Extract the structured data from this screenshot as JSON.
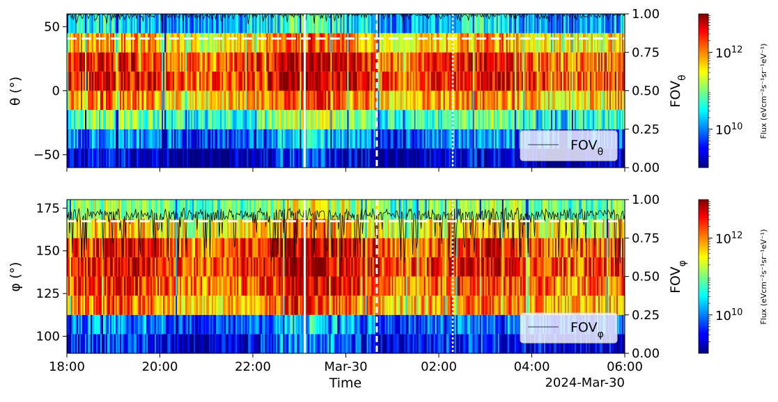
{
  "chart_data": [
    {
      "type": "heatmap",
      "panel": "theta",
      "ylabel": "θ (°)",
      "y2label": "FOV_θ",
      "ylim": [
        -60,
        60
      ],
      "yticks": [
        -50,
        0,
        50
      ],
      "y2lim": [
        0,
        1
      ],
      "y2ticks": [
        "0.00",
        "0.25",
        "0.50",
        "0.75",
        "1.00"
      ],
      "bins_deg": [
        -60,
        -45,
        -30,
        -15,
        0,
        15,
        30,
        45,
        60
      ],
      "bin_level_log10_flux": [
        9.2,
        9.9,
        10.8,
        11.8,
        12.4,
        12.3,
        11.7,
        10.3
      ],
      "fov_threshold_line": 0.84,
      "fov_trace_level": 0.99,
      "vertical_markers": [
        {
          "time": "23:07",
          "style": "solid",
          "color": "white"
        },
        {
          "time": "00:40",
          "style": "dashed",
          "color": "white"
        },
        {
          "time": "02:18",
          "style": "dotted",
          "color": "white"
        }
      ],
      "legend": "FOV_θ",
      "legend_position": "lower-right",
      "colorbar": {
        "label": "Flux (eVcm⁻²s⁻¹sr⁻¹eV⁻¹)",
        "scale": "log",
        "range": [
          1000000000.0,
          10000000000000.0
        ],
        "ticks": [
          "10^10",
          "10^12"
        ]
      }
    },
    {
      "type": "heatmap",
      "panel": "phi",
      "ylabel": "φ (°)",
      "y2label": "FOV_φ",
      "ylim": [
        90,
        180
      ],
      "yticks": [
        100,
        125,
        150,
        175
      ],
      "y2lim": [
        0,
        1
      ],
      "y2ticks": [
        "0.00",
        "0.25",
        "0.50",
        "0.75",
        "1.00"
      ],
      "bins_deg": [
        90,
        101.25,
        112.5,
        123.75,
        135,
        146.25,
        157.5,
        168.75,
        180
      ],
      "bin_level_log10_flux": [
        9.5,
        9.9,
        11.9,
        12.2,
        12.4,
        12.3,
        11.6,
        11.0
      ],
      "fov_threshold_line": 0.86,
      "fov_trace_level": 0.9,
      "vertical_markers": [
        {
          "time": "23:07",
          "style": "solid",
          "color": "white"
        },
        {
          "time": "00:40",
          "style": "dashed",
          "color": "white"
        },
        {
          "time": "02:18",
          "style": "dotted",
          "color": "white"
        }
      ],
      "legend": "FOV_φ",
      "legend_position": "lower-right",
      "colorbar": {
        "label": "Flux (eVcm⁻²s⁻¹sr⁻¹eV⁻¹)",
        "scale": "log",
        "range": [
          1000000000.0,
          10000000000000.0
        ],
        "ticks": [
          "10^10",
          "10^12"
        ]
      }
    }
  ],
  "xaxis": {
    "label": "Time",
    "range": [
      "2024-03-29 18:00",
      "2024-03-30 06:00"
    ],
    "ticks": [
      "18:00",
      "20:00",
      "22:00",
      "Mar-30",
      "02:00",
      "04:00",
      "06:00"
    ],
    "offset_label": "2024-Mar-30"
  }
}
